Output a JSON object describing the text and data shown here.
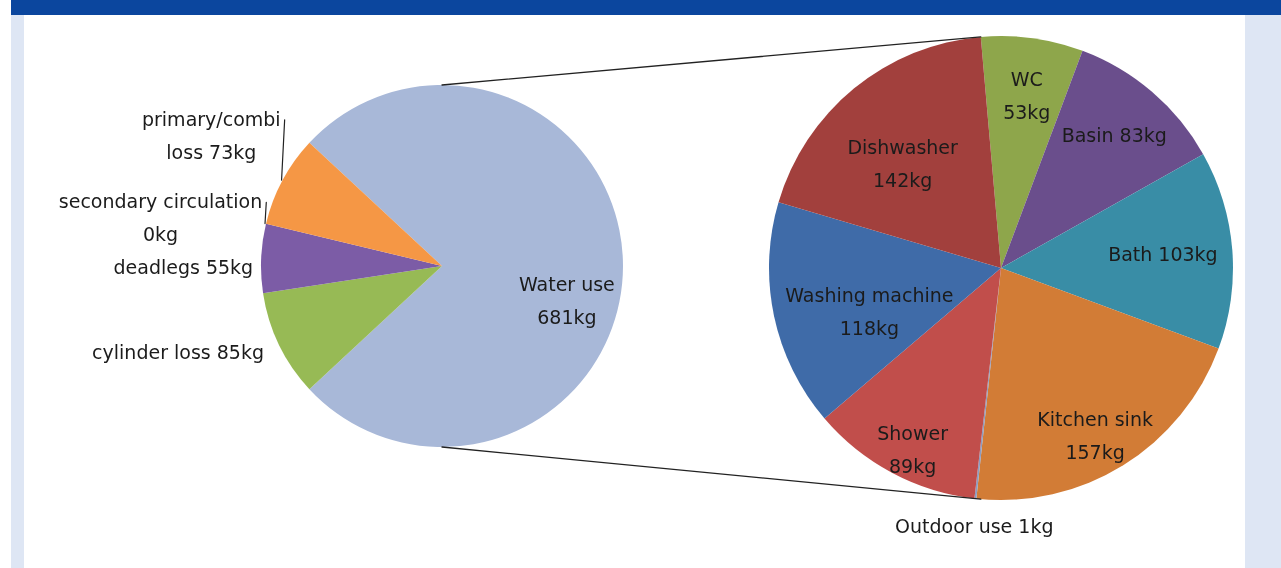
{
  "chart_data": [
    {
      "type": "pie",
      "categories": [
        "Water use",
        "cylinder loss",
        "deadlegs",
        "secondary circulation",
        "primary/combi loss"
      ],
      "values": [
        681,
        85,
        55,
        0,
        73
      ],
      "colors": [
        "#a8b8d8",
        "#97ba55",
        "#7c5ca6",
        "#4bacc6",
        "#f59745"
      ],
      "value_labels": [
        "681kg",
        "85kg",
        "55kg",
        "0kg",
        "73kg"
      ]
    },
    {
      "type": "pie",
      "categories": [
        "WC",
        "Basin",
        "Bath",
        "Kitchen sink",
        "Outdoor use",
        "Shower",
        "Washing machine",
        "Dishwasher"
      ],
      "values": [
        53,
        83,
        103,
        157,
        1,
        89,
        118,
        142
      ],
      "colors": [
        "#8ea64b",
        "#6a4e8c",
        "#398da6",
        "#d27c36",
        "#8c9cc0",
        "#c14e4b",
        "#3f6ba8",
        "#a2403d"
      ],
      "value_labels": [
        "53kg",
        "83kg",
        "103kg",
        "157kg",
        "1kg",
        "89kg",
        "118kg",
        "142kg"
      ]
    }
  ]
}
